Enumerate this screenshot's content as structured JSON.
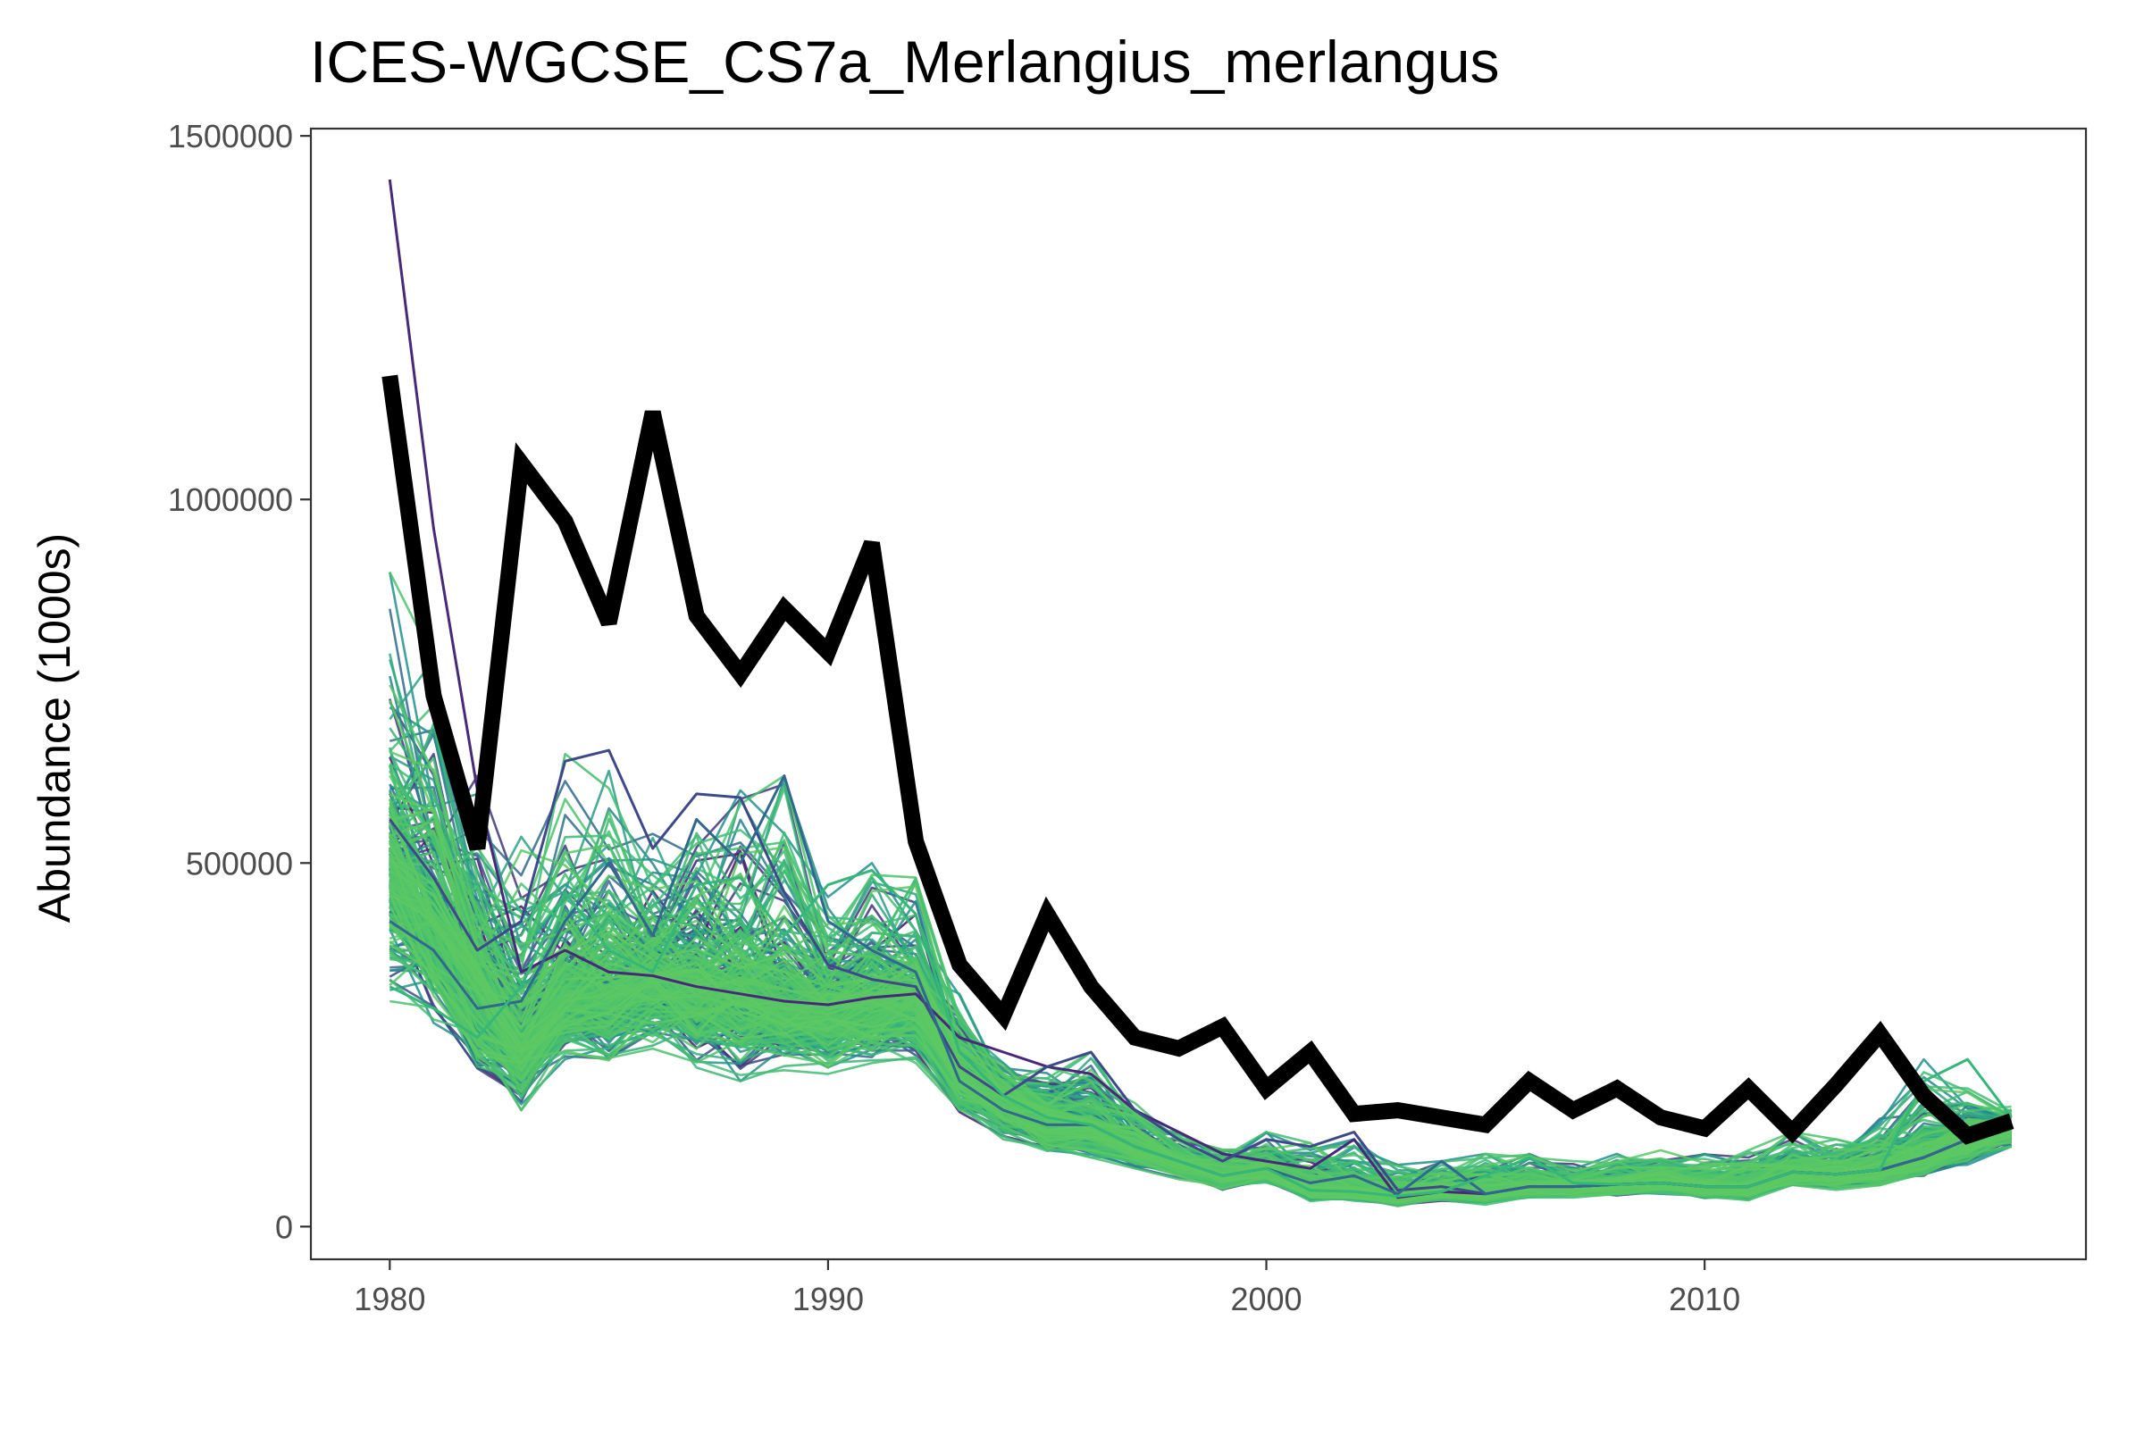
{
  "chart_data": {
    "type": "line",
    "title": "ICES-WGCSE_CS7a_Merlangius_merlangus",
    "xlabel": "",
    "ylabel": "Abundance (1000s)",
    "xlim": [
      1978.2,
      2018.7
    ],
    "ylim": [
      -45000,
      1510000
    ],
    "x_ticks": [
      1980,
      1990,
      2000,
      2010
    ],
    "x_tick_labels": [
      "1980",
      "1990",
      "2000",
      "2010"
    ],
    "y_ticks": [
      0,
      500000,
      1000000,
      1500000
    ],
    "y_tick_labels": [
      "0",
      "500000",
      "1000000",
      "1500000"
    ],
    "grid": false,
    "legend": "none",
    "x": [
      1980,
      1981,
      1982,
      1983,
      1984,
      1985,
      1986,
      1987,
      1988,
      1989,
      1990,
      1991,
      1992,
      1993,
      1994,
      1995,
      1996,
      1997,
      1998,
      1999,
      2000,
      2001,
      2002,
      2003,
      2004,
      2005,
      2006,
      2007,
      2008,
      2009,
      2010,
      2011,
      2012,
      2013,
      2014,
      2015,
      2016,
      2017
    ],
    "series": [
      {
        "role": "reference",
        "color": "#000000",
        "values": [
          1170000,
          730000,
          520000,
          1050000,
          970000,
          830000,
          1120000,
          840000,
          760000,
          850000,
          790000,
          940000,
          530000,
          360000,
          290000,
          430000,
          330000,
          260000,
          245000,
          275000,
          190000,
          240000,
          155000,
          160000,
          150000,
          140000,
          200000,
          160000,
          190000,
          150000,
          135000,
          190000,
          130000,
          195000,
          265000,
          180000,
          125000,
          145000
        ]
      },
      {
        "role": "ensemble",
        "count": 300,
        "palette": [
          "#440154",
          "#3b528b",
          "#21918c",
          "#3fbc73",
          "#5ec962"
        ],
        "envelope": {
          "low": [
            310000,
            280000,
            190000,
            160000,
            230000,
            220000,
            240000,
            215000,
            200000,
            215000,
            210000,
            225000,
            225000,
            150000,
            120000,
            100000,
            95000,
            80000,
            65000,
            50000,
            60000,
            35000,
            35000,
            28000,
            35000,
            30000,
            40000,
            40000,
            40000,
            45000,
            38000,
            35000,
            55000,
            50000,
            55000,
            65000,
            85000,
            110000
          ],
          "mid": [
            500000,
            420000,
            340000,
            250000,
            320000,
            330000,
            345000,
            330000,
            330000,
            310000,
            305000,
            315000,
            320000,
            210000,
            180000,
            150000,
            140000,
            110000,
            90000,
            70000,
            80000,
            50000,
            48000,
            42000,
            48000,
            45000,
            55000,
            55000,
            58000,
            60000,
            55000,
            55000,
            75000,
            72000,
            78000,
            95000,
            120000,
            140000
          ],
          "high": [
            900000,
            780000,
            620000,
            550000,
            650000,
            655000,
            540000,
            600000,
            600000,
            620000,
            460000,
            500000,
            480000,
            320000,
            230000,
            220000,
            240000,
            170000,
            130000,
            110000,
            130000,
            115000,
            120000,
            85000,
            90000,
            100000,
            100000,
            90000,
            100000,
            105000,
            100000,
            105000,
            130000,
            120000,
            150000,
            230000,
            190000,
            165000
          ]
        },
        "outliers": [
          {
            "color": "#482878",
            "values": [
              1440000,
              960000,
              600000,
              350000,
              380000,
              350000,
              345000,
              330000,
              320000,
              310000,
              305000,
              315000,
              320000,
              260000,
              240000,
              220000,
              210000,
              160000,
              130000,
              100000,
              90000,
              80000,
              120000,
              40000,
              48000,
              45000,
              55000,
              55000,
              58000,
              60000,
              55000,
              55000,
              75000,
              72000,
              78000,
              95000,
              120000,
              140000
            ]
          },
          {
            "color": "#3e4989",
            "values": [
              560000,
              480000,
              380000,
              420000,
              640000,
              655000,
              520000,
              595000,
              590000,
              460000,
              360000,
              340000,
              330000,
              220000,
              180000,
              220000,
              240000,
              160000,
              120000,
              90000,
              120000,
              110000,
              130000,
              50000,
              55000,
              45000,
              55000,
              55000,
              58000,
              60000,
              55000,
              55000,
              75000,
              72000,
              78000,
              95000,
              120000,
              140000
            ]
          },
          {
            "color": "#31688e",
            "values": [
              420000,
              380000,
              300000,
              310000,
              420000,
              500000,
              400000,
              560000,
              500000,
              620000,
              420000,
              380000,
              350000,
              200000,
              160000,
              140000,
              140000,
              110000,
              90000,
              70000,
              80000,
              60000,
              70000,
              45000,
              90000,
              45000,
              55000,
              55000,
              58000,
              60000,
              55000,
              55000,
              75000,
              72000,
              78000,
              95000,
              120000,
              140000
            ]
          },
          {
            "color": "#35b779",
            "values": [
              330000,
              300000,
              260000,
              330000,
              460000,
              380000,
              350000,
              470000,
              480000,
              400000,
              470000,
              490000,
              430000,
              240000,
              180000,
              150000,
              140000,
              110000,
              90000,
              70000,
              80000,
              50000,
              48000,
              42000,
              48000,
              70000,
              95000,
              60000,
              58000,
              60000,
              55000,
              55000,
              75000,
              72000,
              78000,
              200000,
              230000,
              150000
            ]
          }
        ]
      }
    ]
  }
}
